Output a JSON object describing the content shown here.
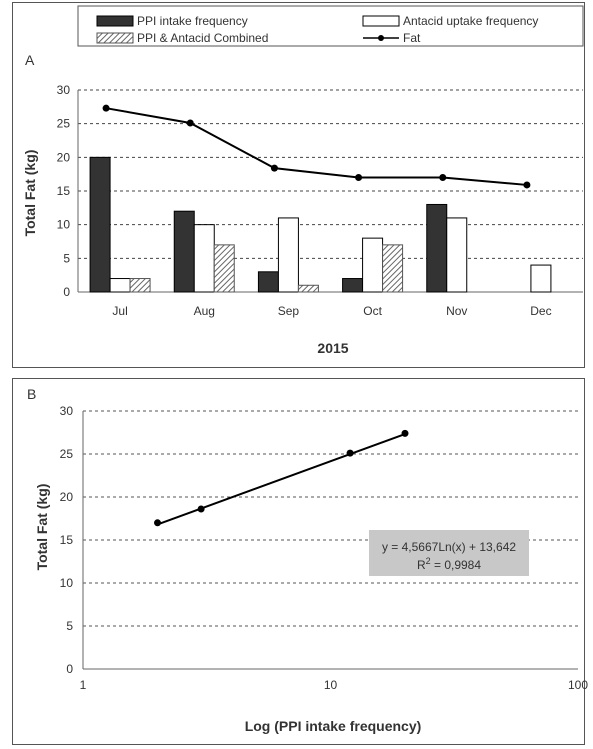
{
  "chart_data": [
    {
      "panel": "A",
      "type": "bar",
      "categories": [
        "Jul",
        "Aug",
        "Sep",
        "Oct",
        "Nov",
        "Dec"
      ],
      "series": [
        {
          "name": "PPI intake frequency",
          "kind": "bar",
          "color": "#333333",
          "values": [
            20,
            12,
            3,
            2,
            13,
            null
          ]
        },
        {
          "name": "Antacid uptake frequency",
          "kind": "bar",
          "color": "#ffffff",
          "values": [
            2,
            10,
            11,
            8,
            11,
            4
          ]
        },
        {
          "name": "PPI & Antacid Combined",
          "kind": "bar",
          "color": "#9a9a9a",
          "pattern": "hatched",
          "values": [
            2,
            7,
            1,
            7,
            null,
            null
          ]
        },
        {
          "name": "Fat",
          "kind": "line",
          "color": "#000000",
          "values": [
            27.3,
            25.1,
            18.4,
            17.0,
            17.0,
            15.9
          ]
        }
      ],
      "xlabel": "2015",
      "ylabel": "Total Fat (kg)",
      "ylim": [
        0,
        30
      ],
      "yticks": [
        0,
        5,
        10,
        15,
        20,
        25,
        30
      ],
      "grid": "dashed horizontal",
      "legend": "top"
    },
    {
      "panel": "B",
      "type": "scatter",
      "x": [
        2,
        3,
        12,
        20
      ],
      "y": [
        17.0,
        18.6,
        25.1,
        27.4
      ],
      "xscale": "log",
      "xlim": [
        1,
        100
      ],
      "xticks": [
        1,
        10,
        100
      ],
      "ylim": [
        0,
        30
      ],
      "yticks": [
        0,
        5,
        10,
        15,
        20,
        25,
        30
      ],
      "xlabel": "Log (PPI intake frequency)",
      "ylabel": "Total Fat (kg)",
      "trendline": {
        "a": 4.5667,
        "b": 13.642
      },
      "equation_text": "y = 4,5667Ln(x) + 13,642",
      "r2_label": "R",
      "r2_exp": "2",
      "r2_value": " = 0,9984",
      "grid": "dashed horizontal"
    }
  ]
}
